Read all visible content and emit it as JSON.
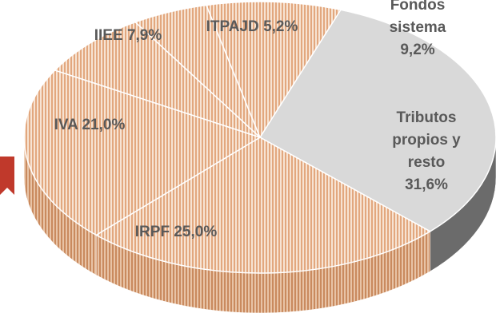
{
  "chart_data": {
    "type": "pie",
    "categories": [
      "Tributos propios y resto",
      "IRPF",
      "IVA",
      "IIEE",
      "ITPAJD",
      "Fondos sistema"
    ],
    "values": [
      31.6,
      25.0,
      21.0,
      7.9,
      5.2,
      9.2
    ],
    "value_labels": [
      "31,6%",
      "25,0%",
      "21,0%",
      "7,9%",
      "5,2%",
      "9,2%"
    ],
    "colors": [
      "#d9d9d9",
      "#e9b994",
      "#e9b994",
      "#e9b994",
      "#e9b994",
      "#e9b994"
    ]
  }
}
